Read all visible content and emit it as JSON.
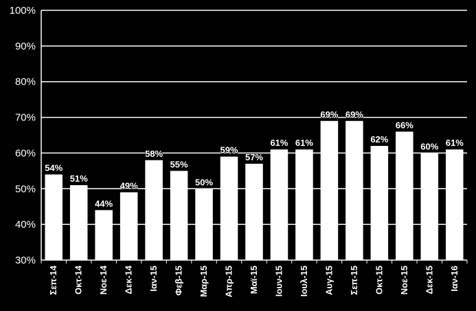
{
  "chart_data": {
    "type": "bar",
    "categories": [
      "Σεπ-14",
      "Οκτ-14",
      "Νοε-14",
      "Δεκ-14",
      "Ιαν-15",
      "Φεβ-15",
      "Μαρ-15",
      "Απρ-15",
      "Μαϊ-15",
      "Ιουν-15",
      "Ιουλ-15",
      "Αυγ-15",
      "Σεπ-15",
      "Οκτ-15",
      "Νοε-15",
      "Δεκ-15",
      "Ιαν-16"
    ],
    "values": [
      54,
      51,
      44,
      49,
      58,
      55,
      50,
      59,
      57,
      61,
      61,
      69,
      69,
      62,
      66,
      60,
      61
    ],
    "data_labels": [
      "54%",
      "51%",
      "44%",
      "49%",
      "58%",
      "55%",
      "50%",
      "59%",
      "57%",
      "61%",
      "61%",
      "69%",
      "69%",
      "62%",
      "66%",
      "60%",
      "61%"
    ],
    "ylim": [
      30,
      100
    ],
    "yticks": [
      30,
      40,
      50,
      60,
      70,
      80,
      90,
      100
    ],
    "ytick_labels": [
      "30%",
      "40%",
      "50%",
      "60%",
      "70%",
      "80%",
      "90%",
      "100%"
    ],
    "grid": true,
    "colors": {
      "background": "#000000",
      "bar": "#ffffff",
      "grid": "#ffffff",
      "text": "#ffffff"
    }
  }
}
